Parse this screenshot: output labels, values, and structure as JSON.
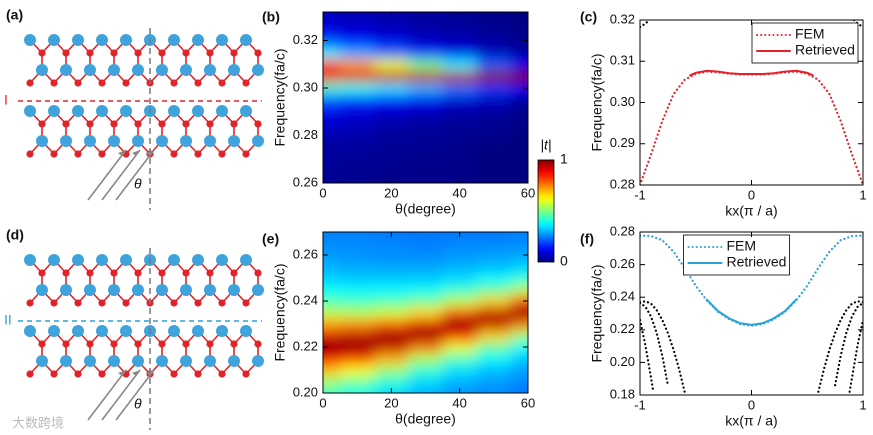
{
  "diagrams": [
    {
      "label": "(a)",
      "line_label": "I",
      "angle_label": "θ",
      "line_color": "#e0242a"
    },
    {
      "label": "(d)",
      "line_label": "II",
      "angle_label": "θ",
      "line_color": "#29a3d6"
    }
  ],
  "colorbar": {
    "label": "|t|",
    "range": [
      0,
      1
    ],
    "ticks": [
      0,
      1
    ],
    "colormap": "jet"
  },
  "watermark": "大数跨境",
  "chart_data": [
    {
      "type": "heatmap",
      "label": "(b)",
      "xlabel": "θ(degree)",
      "ylabel": "Frequency(fa/c)",
      "xlim": [
        0,
        60
      ],
      "ylim": [
        0.26,
        0.332
      ],
      "xticks": [
        0,
        20,
        40,
        60
      ],
      "yticks": [
        0.26,
        0.28,
        {
          "value": 0.3,
          "label": "0.30"
        },
        0.32
      ],
      "x": [
        0,
        10,
        20,
        30,
        40,
        50,
        60
      ],
      "y": [
        0.26,
        0.265,
        0.27,
        0.275,
        0.28,
        0.285,
        0.29,
        0.295,
        0.3,
        0.305,
        0.31,
        0.315,
        0.32,
        0.325,
        0.33
      ],
      "z": [
        [
          0.02,
          0.01,
          0.01,
          0.01,
          0.01,
          0,
          0
        ],
        [
          0.02,
          0.02,
          0.01,
          0.01,
          0.01,
          0,
          0
        ],
        [
          0.03,
          0.02,
          0.02,
          0.01,
          0.01,
          0,
          0
        ],
        [
          0.03,
          0.03,
          0.02,
          0.02,
          0.01,
          0,
          0
        ],
        [
          0.05,
          0.04,
          0.03,
          0.02,
          0.02,
          0.01,
          0
        ],
        [
          0.07,
          0.06,
          0.04,
          0.03,
          0.02,
          0.02,
          0.01
        ],
        [
          0.11,
          0.09,
          0.07,
          0.06,
          0.04,
          0.03,
          0.01
        ],
        [
          0.2,
          0.17,
          0.14,
          0.11,
          0.08,
          0.06,
          0.03
        ],
        [
          0.42,
          0.39,
          0.35,
          0.3,
          0.24,
          0.18,
          0.11
        ],
        [
          0.9,
          0.91,
          0.93,
          0.94,
          0.95,
          0.99,
          1
        ],
        [
          0.8,
          0.72,
          0.61,
          0.49,
          0.36,
          0.22,
          0.11
        ],
        [
          0.36,
          0.29,
          0.22,
          0.16,
          0.11,
          0.06,
          0.03
        ],
        [
          0.18,
          0.14,
          0.1,
          0.07,
          0.05,
          0.03,
          0.01
        ],
        [
          0.1,
          0.08,
          0.06,
          0.04,
          0.03,
          0.02,
          0.01
        ],
        [
          0.06,
          0.05,
          0.04,
          0.03,
          0.02,
          0.01,
          0
        ]
      ],
      "colormap": "jet"
    },
    {
      "type": "line",
      "label": "(c)",
      "xlabel": "kx(π / a)",
      "ylabel": "Frequency(fa/c)",
      "xlim": [
        -1,
        1
      ],
      "ylim": [
        0.28,
        0.32
      ],
      "xticks": [
        -1,
        0,
        1
      ],
      "yticks": [
        0.28,
        0.29,
        {
          "value": 0.3,
          "label": "0.30"
        },
        0.31,
        0.32
      ],
      "legend": "upper right",
      "series": [
        {
          "name": "FEM",
          "color": "#e8202a",
          "linestyle": "dotted",
          "x": [
            -1,
            -0.9,
            -0.8,
            -0.7,
            -0.6,
            -0.5,
            -0.4,
            -0.3,
            -0.2,
            -0.1,
            0,
            0.1,
            0.2,
            0.3,
            0.4,
            0.5,
            0.6,
            0.7,
            0.8,
            0.9,
            1
          ],
          "values": [
            0.28,
            0.2875,
            0.2955,
            0.302,
            0.3055,
            0.307,
            0.3075,
            0.3073,
            0.307,
            0.3068,
            0.3068,
            0.3068,
            0.307,
            0.3073,
            0.3075,
            0.307,
            0.3055,
            0.302,
            0.2955,
            0.2875,
            0.28
          ]
        },
        {
          "name": "Retrieved",
          "color": "#e8202a",
          "linestyle": "solid",
          "x": [
            -0.55,
            -0.5,
            -0.4,
            -0.3,
            -0.2,
            -0.1,
            0,
            0.1,
            0.2,
            0.3,
            0.4,
            0.5,
            0.55
          ],
          "values": [
            0.3066,
            0.3072,
            0.3077,
            0.3075,
            0.3071,
            0.3069,
            0.3069,
            0.3069,
            0.3071,
            0.3075,
            0.3077,
            0.3072,
            0.3066
          ]
        },
        {
          "color": "#000000",
          "linestyle": "dotted",
          "x": [
            -1,
            -0.97,
            -0.94,
            -0.92
          ],
          "values": [
            0.3183,
            0.3188,
            0.3194,
            0.32
          ]
        },
        {
          "color": "#000000",
          "linestyle": "dotted",
          "x": [
            0.92,
            0.94,
            0.97,
            1
          ],
          "values": [
            0.32,
            0.3194,
            0.3188,
            0.3183
          ]
        }
      ]
    },
    {
      "type": "heatmap",
      "label": "(e)",
      "xlabel": "θ(degree)",
      "ylabel": "Frequency(fa/c)",
      "xlim": [
        0,
        60
      ],
      "ylim": [
        0.2,
        0.27
      ],
      "xticks": [
        0,
        20,
        40,
        60
      ],
      "yticks": [
        {
          "value": 0.2,
          "label": "0.20"
        },
        0.22,
        0.24,
        0.26
      ],
      "x": [
        0,
        10,
        20,
        30,
        40,
        50,
        60
      ],
      "y": [
        0.2,
        0.205,
        0.21,
        0.215,
        0.22,
        0.225,
        0.23,
        0.235,
        0.24,
        0.245,
        0.25,
        0.255,
        0.26,
        0.265,
        0.27
      ],
      "z": [
        [
          0.43,
          0.39,
          0.34,
          0.3,
          0.27,
          0.26,
          0.24
        ],
        [
          0.53,
          0.48,
          0.41,
          0.34,
          0.3,
          0.28,
          0.26
        ],
        [
          0.69,
          0.62,
          0.52,
          0.42,
          0.35,
          0.31,
          0.28
        ],
        [
          0.88,
          0.82,
          0.7,
          0.54,
          0.44,
          0.37,
          0.32
        ],
        [
          1,
          0.98,
          0.93,
          0.76,
          0.6,
          0.47,
          0.38
        ],
        [
          0.91,
          0.94,
          0.98,
          0.98,
          0.86,
          0.67,
          0.52
        ],
        [
          0.72,
          0.74,
          0.79,
          0.91,
          1,
          0.94,
          0.76
        ],
        [
          0.56,
          0.55,
          0.58,
          0.66,
          0.8,
          0.94,
          1
        ],
        [
          0.45,
          0.44,
          0.45,
          0.48,
          0.56,
          0.67,
          0.82
        ],
        [
          0.38,
          0.37,
          0.37,
          0.38,
          0.42,
          0.47,
          0.55
        ],
        [
          0.33,
          0.32,
          0.32,
          0.32,
          0.34,
          0.37,
          0.41
        ],
        [
          0.3,
          0.29,
          0.29,
          0.29,
          0.3,
          0.31,
          0.33
        ],
        [
          0.28,
          0.27,
          0.26,
          0.26,
          0.27,
          0.28,
          0.29
        ],
        [
          0.26,
          0.26,
          0.26,
          0.25,
          0.26,
          0.26,
          0.26
        ],
        [
          0.25,
          0.25,
          0.24,
          0.24,
          0.24,
          0.24,
          0.25
        ]
      ],
      "colormap": "jet"
    },
    {
      "type": "line",
      "label": "(f)",
      "xlabel": "kx(π / a)",
      "ylabel": "Frequency(fa/c)",
      "xlim": [
        -1,
        1
      ],
      "ylim": [
        0.18,
        0.28
      ],
      "xticks": [
        -1,
        0,
        1
      ],
      "yticks": [
        0.18,
        {
          "value": 0.2,
          "label": "0.20"
        },
        0.22,
        0.24,
        0.26,
        0.28
      ],
      "legend": "upper center",
      "series": [
        {
          "name": "FEM",
          "color": "#29a3d6",
          "linestyle": "dotted",
          "x": [
            -1,
            -0.9,
            -0.8,
            -0.7,
            -0.6,
            -0.5,
            -0.4,
            -0.3,
            -0.2,
            -0.1,
            0,
            0.1,
            0.2,
            0.3,
            0.4,
            0.5,
            0.6,
            0.7,
            0.8,
            0.9,
            1
          ],
          "values": [
            0.2778,
            0.2775,
            0.275,
            0.268,
            0.258,
            0.247,
            0.238,
            0.231,
            0.2265,
            0.2235,
            0.2225,
            0.2235,
            0.2265,
            0.231,
            0.238,
            0.247,
            0.258,
            0.268,
            0.275,
            0.2775,
            0.2778
          ]
        },
        {
          "name": "Retrieved",
          "color": "#29a3d6",
          "linestyle": "solid",
          "x": [
            -0.4,
            -0.3,
            -0.2,
            -0.1,
            0,
            0.1,
            0.2,
            0.3,
            0.4
          ],
          "values": [
            0.2385,
            0.2315,
            0.227,
            0.224,
            0.223,
            0.224,
            0.227,
            0.2315,
            0.2385
          ]
        },
        {
          "color": "#000000",
          "linestyle": "dotted",
          "x": [
            -1,
            -0.95,
            -0.9,
            -0.85,
            -0.8,
            -0.75,
            -0.7,
            -0.65,
            -0.6
          ],
          "values": [
            0.237,
            0.2375,
            0.236,
            0.232,
            0.226,
            0.218,
            0.208,
            0.196,
            0.182
          ]
        },
        {
          "color": "#000000",
          "linestyle": "dotted",
          "x": [
            -1,
            -0.95,
            -0.9,
            -0.85,
            -0.8,
            -0.75
          ],
          "values": [
            0.2365,
            0.234,
            0.228,
            0.218,
            0.204,
            0.186
          ]
        },
        {
          "color": "#000000",
          "linestyle": "dotted",
          "x": [
            -1,
            -0.95,
            -0.9,
            -0.88
          ],
          "values": [
            0.226,
            0.21,
            0.19,
            0.182
          ]
        },
        {
          "color": "#000000",
          "linestyle": "dotted",
          "x": [
            0.6,
            0.65,
            0.7,
            0.75,
            0.8,
            0.85,
            0.9,
            0.95,
            1
          ],
          "values": [
            0.182,
            0.196,
            0.208,
            0.218,
            0.226,
            0.232,
            0.236,
            0.2375,
            0.237
          ]
        },
        {
          "color": "#000000",
          "linestyle": "dotted",
          "x": [
            0.75,
            0.8,
            0.85,
            0.9,
            0.95,
            1
          ],
          "values": [
            0.186,
            0.204,
            0.218,
            0.228,
            0.234,
            0.2365
          ]
        },
        {
          "color": "#000000",
          "linestyle": "dotted",
          "x": [
            0.88,
            0.9,
            0.95,
            1
          ],
          "values": [
            0.182,
            0.19,
            0.21,
            0.226
          ]
        }
      ]
    }
  ]
}
